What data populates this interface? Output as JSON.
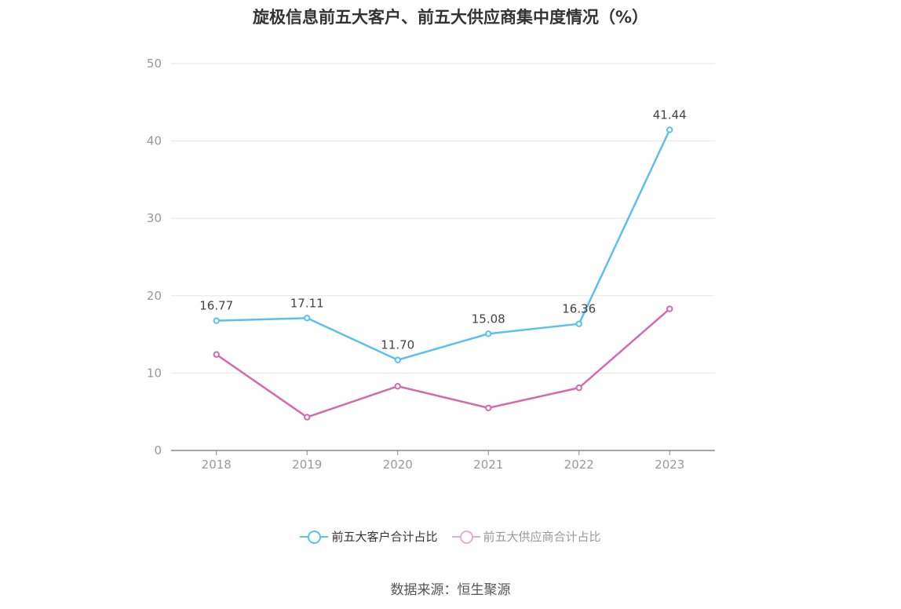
{
  "chart_data": {
    "type": "line",
    "title": "旋极信息前五大客户、前五大供应商集中度情况（%）",
    "categories": [
      "2018",
      "2019",
      "2020",
      "2021",
      "2022",
      "2023"
    ],
    "y_ticks": [
      "0",
      "10",
      "20",
      "30",
      "40",
      "50"
    ],
    "ylim": [
      0,
      50
    ],
    "grid": true,
    "legend_position": "bottom",
    "series": [
      {
        "name": "前五大客户合计占比",
        "color": "#5bc0f0",
        "values": [
          16.77,
          17.11,
          11.7,
          15.08,
          16.36,
          41.44
        ],
        "labels": [
          "16.77",
          "17.11",
          "11.70",
          "15.08",
          "16.36",
          "41.44"
        ]
      },
      {
        "name": "前五大供应商合计占比",
        "color": "#d46aad",
        "values": [
          12.4,
          4.3,
          8.3,
          5.5,
          8.1,
          18.3
        ],
        "labels": []
      }
    ]
  },
  "source": "数据来源：恒生聚源"
}
